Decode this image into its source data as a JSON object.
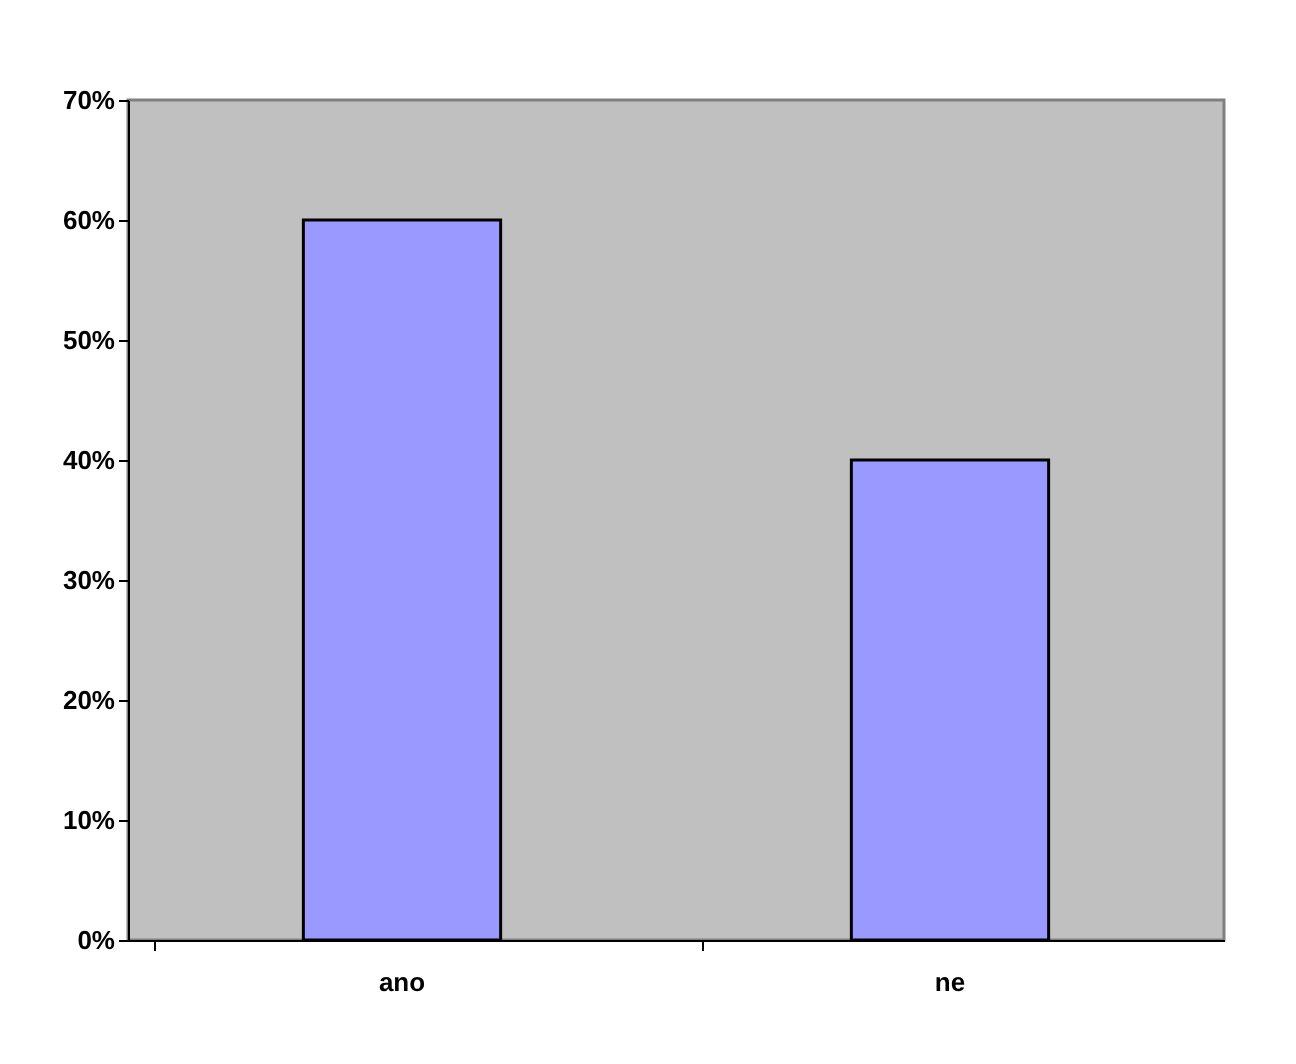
{
  "chart_data": {
    "type": "bar",
    "categories": [
      "ano",
      "ne"
    ],
    "series": [
      {
        "color": "#9999ff",
        "values": [
          60,
          40
        ]
      }
    ],
    "ylim": [
      0,
      70
    ],
    "yticks": [
      {
        "value": 0,
        "label": "0%"
      },
      {
        "value": 10,
        "label": "10%"
      },
      {
        "value": 20,
        "label": "20%"
      },
      {
        "value": 30,
        "label": "30%"
      },
      {
        "value": 40,
        "label": "40%"
      },
      {
        "value": 50,
        "label": "50%"
      },
      {
        "value": 60,
        "label": "60%"
      },
      {
        "value": 70,
        "label": "70%"
      }
    ],
    "grid": false,
    "legend": false
  }
}
